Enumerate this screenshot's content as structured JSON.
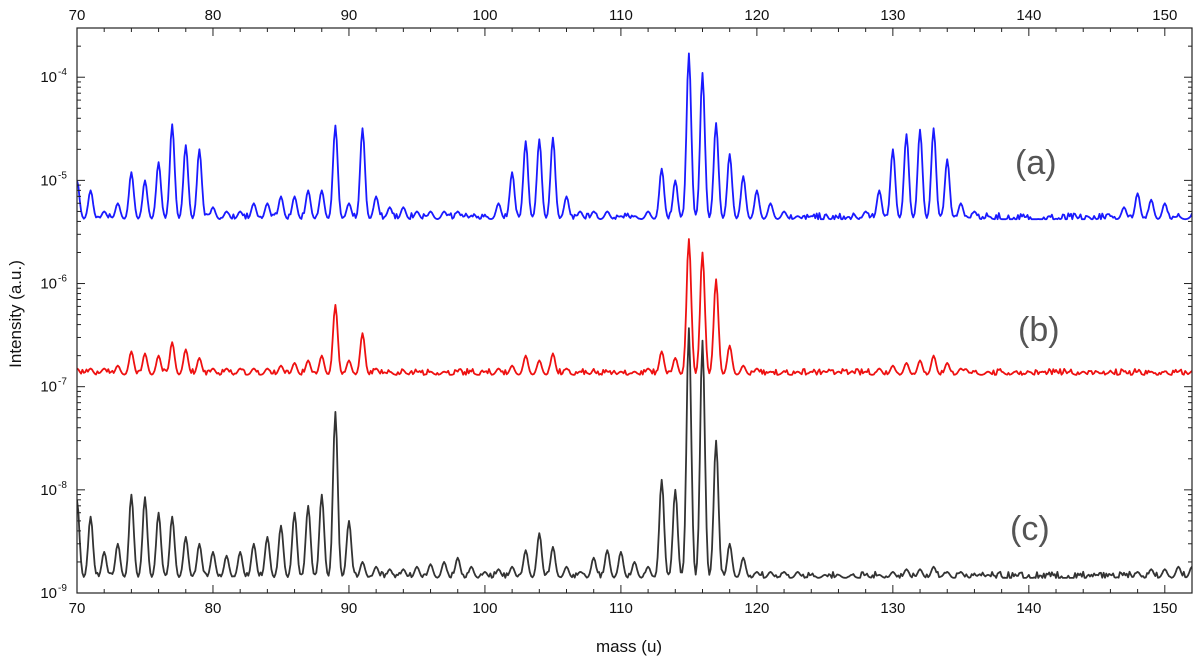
{
  "chart_data": {
    "type": "line",
    "xlabel": "mass (u)",
    "ylabel": "Intensity (a.u.)",
    "xlim": [
      70,
      152
    ],
    "ylim": [
      1e-09,
      0.0003
    ],
    "y_scale": "log",
    "x_ticks": [
      70,
      80,
      90,
      100,
      110,
      120,
      130,
      140,
      150
    ],
    "y_ticks": [
      {
        "value": 1e-09,
        "base": "10",
        "exp": "-9"
      },
      {
        "value": 1e-08,
        "base": "10",
        "exp": "-8"
      },
      {
        "value": 1e-07,
        "base": "10",
        "exp": "-7"
      },
      {
        "value": 1e-06,
        "base": "10",
        "exp": "-6"
      },
      {
        "value": 1e-05,
        "base": "10",
        "exp": "-5"
      },
      {
        "value": 0.0001,
        "base": "10",
        "exp": "-4"
      }
    ],
    "grid": false,
    "mirror_top_axis": true,
    "series": [
      {
        "label": "(a)",
        "color": "#1a1aff",
        "baseline": 4.2e-06,
        "peaks": [
          {
            "x": 70,
            "y": 1e-05
          },
          {
            "x": 71,
            "y": 8e-06
          },
          {
            "x": 72,
            "y": 5e-06
          },
          {
            "x": 73,
            "y": 6e-06
          },
          {
            "x": 74,
            "y": 1.2e-05
          },
          {
            "x": 75,
            "y": 1e-05
          },
          {
            "x": 76,
            "y": 1.5e-05
          },
          {
            "x": 77,
            "y": 3.5e-05
          },
          {
            "x": 78,
            "y": 2.2e-05
          },
          {
            "x": 79,
            "y": 2e-05
          },
          {
            "x": 80,
            "y": 5.5e-06
          },
          {
            "x": 81,
            "y": 5e-06
          },
          {
            "x": 82,
            "y": 5e-06
          },
          {
            "x": 83,
            "y": 6e-06
          },
          {
            "x": 84,
            "y": 6e-06
          },
          {
            "x": 85,
            "y": 7e-06
          },
          {
            "x": 86,
            "y": 7e-06
          },
          {
            "x": 87,
            "y": 8e-06
          },
          {
            "x": 88,
            "y": 8e-06
          },
          {
            "x": 89,
            "y": 3.4e-05
          },
          {
            "x": 90,
            "y": 6e-06
          },
          {
            "x": 91,
            "y": 3.2e-05
          },
          {
            "x": 92,
            "y": 7e-06
          },
          {
            "x": 93,
            "y": 5.5e-06
          },
          {
            "x": 94,
            "y": 5.5e-06
          },
          {
            "x": 95,
            "y": 5e-06
          },
          {
            "x": 96,
            "y": 5e-06
          },
          {
            "x": 97,
            "y": 5e-06
          },
          {
            "x": 98,
            "y": 5e-06
          },
          {
            "x": 99,
            "y": 4.5e-06
          },
          {
            "x": 100,
            "y": 4.5e-06
          },
          {
            "x": 101,
            "y": 6e-06
          },
          {
            "x": 102,
            "y": 1.2e-05
          },
          {
            "x": 103,
            "y": 2.4e-05
          },
          {
            "x": 104,
            "y": 2.5e-05
          },
          {
            "x": 105,
            "y": 2.6e-05
          },
          {
            "x": 106,
            "y": 7e-06
          },
          {
            "x": 107,
            "y": 5e-06
          },
          {
            "x": 108,
            "y": 5e-06
          },
          {
            "x": 109,
            "y": 5e-06
          },
          {
            "x": 110,
            "y": 4.5e-06
          },
          {
            "x": 111,
            "y": 4.5e-06
          },
          {
            "x": 112,
            "y": 5e-06
          },
          {
            "x": 113,
            "y": 1.3e-05
          },
          {
            "x": 114,
            "y": 1e-05
          },
          {
            "x": 115,
            "y": 0.00017
          },
          {
            "x": 116,
            "y": 0.00011
          },
          {
            "x": 117,
            "y": 3.6e-05
          },
          {
            "x": 118,
            "y": 1.8e-05
          },
          {
            "x": 119,
            "y": 1.1e-05
          },
          {
            "x": 120,
            "y": 8e-06
          },
          {
            "x": 121,
            "y": 6e-06
          },
          {
            "x": 122,
            "y": 5e-06
          },
          {
            "x": 123,
            "y": 4.5e-06
          },
          {
            "x": 124,
            "y": 4.5e-06
          },
          {
            "x": 125,
            "y": 4e-06
          },
          {
            "x": 126,
            "y": 4e-06
          },
          {
            "x": 127,
            "y": 4e-06
          },
          {
            "x": 128,
            "y": 5e-06
          },
          {
            "x": 129,
            "y": 8e-06
          },
          {
            "x": 130,
            "y": 2e-05
          },
          {
            "x": 131,
            "y": 2.8e-05
          },
          {
            "x": 132,
            "y": 3.1e-05
          },
          {
            "x": 133,
            "y": 3.2e-05
          },
          {
            "x": 134,
            "y": 1.6e-05
          },
          {
            "x": 135,
            "y": 6e-06
          },
          {
            "x": 136,
            "y": 5e-06
          },
          {
            "x": 137,
            "y": 4.5e-06
          },
          {
            "x": 138,
            "y": 4e-06
          },
          {
            "x": 139,
            "y": 4e-06
          },
          {
            "x": 140,
            "y": 3.8e-06
          },
          {
            "x": 141,
            "y": 3.8e-06
          },
          {
            "x": 142,
            "y": 3.8e-06
          },
          {
            "x": 143,
            "y": 3.8e-06
          },
          {
            "x": 144,
            "y": 3.6e-06
          },
          {
            "x": 145,
            "y": 4e-06
          },
          {
            "x": 146,
            "y": 4.5e-06
          },
          {
            "x": 147,
            "y": 5.5e-06
          },
          {
            "x": 148,
            "y": 7.5e-06
          },
          {
            "x": 149,
            "y": 6.5e-06
          },
          {
            "x": 150,
            "y": 6e-06
          },
          {
            "x": 151,
            "y": 4.5e-06
          },
          {
            "x": 152,
            "y": 4.5e-06
          }
        ]
      },
      {
        "label": "(b)",
        "color": "#ee1111",
        "baseline": 1.3e-07,
        "peaks": [
          {
            "x": 70,
            "y": 1.5e-07
          },
          {
            "x": 71,
            "y": 1.5e-07
          },
          {
            "x": 72,
            "y": 1.5e-07
          },
          {
            "x": 73,
            "y": 1.6e-07
          },
          {
            "x": 74,
            "y": 2.2e-07
          },
          {
            "x": 75,
            "y": 2.1e-07
          },
          {
            "x": 76,
            "y": 2e-07
          },
          {
            "x": 77,
            "y": 2.7e-07
          },
          {
            "x": 78,
            "y": 2.3e-07
          },
          {
            "x": 79,
            "y": 1.9e-07
          },
          {
            "x": 80,
            "y": 1.5e-07
          },
          {
            "x": 81,
            "y": 1.5e-07
          },
          {
            "x": 82,
            "y": 1.5e-07
          },
          {
            "x": 83,
            "y": 1.5e-07
          },
          {
            "x": 84,
            "y": 1.5e-07
          },
          {
            "x": 85,
            "y": 1.6e-07
          },
          {
            "x": 86,
            "y": 1.7e-07
          },
          {
            "x": 87,
            "y": 1.8e-07
          },
          {
            "x": 88,
            "y": 2e-07
          },
          {
            "x": 89,
            "y": 6.2e-07
          },
          {
            "x": 90,
            "y": 1.8e-07
          },
          {
            "x": 91,
            "y": 3.3e-07
          },
          {
            "x": 92,
            "y": 1.5e-07
          },
          {
            "x": 93,
            "y": 1.4e-07
          },
          {
            "x": 94,
            "y": 1.4e-07
          },
          {
            "x": 95,
            "y": 1.4e-07
          },
          {
            "x": 96,
            "y": 1.4e-07
          },
          {
            "x": 97,
            "y": 1.4e-07
          },
          {
            "x": 98,
            "y": 1.4e-07
          },
          {
            "x": 99,
            "y": 1.4e-07
          },
          {
            "x": 100,
            "y": 1.4e-07
          },
          {
            "x": 101,
            "y": 1.5e-07
          },
          {
            "x": 102,
            "y": 1.6e-07
          },
          {
            "x": 103,
            "y": 2e-07
          },
          {
            "x": 104,
            "y": 1.8e-07
          },
          {
            "x": 105,
            "y": 2.1e-07
          },
          {
            "x": 106,
            "y": 1.5e-07
          },
          {
            "x": 107,
            "y": 1.4e-07
          },
          {
            "x": 108,
            "y": 1.4e-07
          },
          {
            "x": 109,
            "y": 1.4e-07
          },
          {
            "x": 110,
            "y": 1.4e-07
          },
          {
            "x": 111,
            "y": 1.4e-07
          },
          {
            "x": 112,
            "y": 1.5e-07
          },
          {
            "x": 113,
            "y": 2.2e-07
          },
          {
            "x": 114,
            "y": 1.9e-07
          },
          {
            "x": 115,
            "y": 2.7e-06
          },
          {
            "x": 116,
            "y": 2e-06
          },
          {
            "x": 117,
            "y": 1.1e-06
          },
          {
            "x": 118,
            "y": 2.5e-07
          },
          {
            "x": 119,
            "y": 1.6e-07
          },
          {
            "x": 120,
            "y": 1.5e-07
          },
          {
            "x": 121,
            "y": 1.4e-07
          },
          {
            "x": 122,
            "y": 1.4e-07
          },
          {
            "x": 123,
            "y": 1.4e-07
          },
          {
            "x": 124,
            "y": 1.4e-07
          },
          {
            "x": 125,
            "y": 1.4e-07
          },
          {
            "x": 126,
            "y": 1.4e-07
          },
          {
            "x": 127,
            "y": 1.4e-07
          },
          {
            "x": 128,
            "y": 1.4e-07
          },
          {
            "x": 129,
            "y": 1.5e-07
          },
          {
            "x": 130,
            "y": 1.6e-07
          },
          {
            "x": 131,
            "y": 1.7e-07
          },
          {
            "x": 132,
            "y": 1.8e-07
          },
          {
            "x": 133,
            "y": 2e-07
          },
          {
            "x": 134,
            "y": 1.7e-07
          },
          {
            "x": 135,
            "y": 1.5e-07
          },
          {
            "x": 136,
            "y": 1.4e-07
          },
          {
            "x": 137,
            "y": 1.4e-07
          },
          {
            "x": 138,
            "y": 1.4e-07
          },
          {
            "x": 139,
            "y": 1.4e-07
          },
          {
            "x": 140,
            "y": 1.4e-07
          },
          {
            "x": 141,
            "y": 1.4e-07
          },
          {
            "x": 142,
            "y": 1.4e-07
          },
          {
            "x": 143,
            "y": 1.4e-07
          },
          {
            "x": 144,
            "y": 1.4e-07
          },
          {
            "x": 145,
            "y": 1.4e-07
          },
          {
            "x": 146,
            "y": 1.4e-07
          },
          {
            "x": 147,
            "y": 1.4e-07
          },
          {
            "x": 148,
            "y": 1.4e-07
          },
          {
            "x": 149,
            "y": 1.4e-07
          },
          {
            "x": 150,
            "y": 1.4e-07
          },
          {
            "x": 151,
            "y": 1.4e-07
          },
          {
            "x": 152,
            "y": 1.4e-07
          }
        ]
      },
      {
        "label": "(c)",
        "color": "#333333",
        "baseline": 1.4e-09,
        "peaks": [
          {
            "x": 70,
            "y": 8e-09
          },
          {
            "x": 71,
            "y": 5.5e-09
          },
          {
            "x": 72,
            "y": 2.5e-09
          },
          {
            "x": 73,
            "y": 3e-09
          },
          {
            "x": 74,
            "y": 9e-09
          },
          {
            "x": 75,
            "y": 8.5e-09
          },
          {
            "x": 76,
            "y": 6e-09
          },
          {
            "x": 77,
            "y": 5.5e-09
          },
          {
            "x": 78,
            "y": 3.5e-09
          },
          {
            "x": 79,
            "y": 3e-09
          },
          {
            "x": 80,
            "y": 2.5e-09
          },
          {
            "x": 81,
            "y": 2.3e-09
          },
          {
            "x": 82,
            "y": 2.5e-09
          },
          {
            "x": 83,
            "y": 3e-09
          },
          {
            "x": 84,
            "y": 3.5e-09
          },
          {
            "x": 85,
            "y": 4.5e-09
          },
          {
            "x": 86,
            "y": 6e-09
          },
          {
            "x": 87,
            "y": 7e-09
          },
          {
            "x": 88,
            "y": 9e-09
          },
          {
            "x": 89,
            "y": 5.7e-08
          },
          {
            "x": 90,
            "y": 5e-09
          },
          {
            "x": 91,
            "y": 2e-09
          },
          {
            "x": 92,
            "y": 1.8e-09
          },
          {
            "x": 93,
            "y": 1.7e-09
          },
          {
            "x": 94,
            "y": 1.7e-09
          },
          {
            "x": 95,
            "y": 1.8e-09
          },
          {
            "x": 96,
            "y": 1.9e-09
          },
          {
            "x": 97,
            "y": 2e-09
          },
          {
            "x": 98,
            "y": 2.2e-09
          },
          {
            "x": 99,
            "y": 1.8e-09
          },
          {
            "x": 100,
            "y": 1.6e-09
          },
          {
            "x": 101,
            "y": 1.7e-09
          },
          {
            "x": 102,
            "y": 1.8e-09
          },
          {
            "x": 103,
            "y": 2.6e-09
          },
          {
            "x": 104,
            "y": 3.8e-09
          },
          {
            "x": 105,
            "y": 2.8e-09
          },
          {
            "x": 106,
            "y": 1.8e-09
          },
          {
            "x": 107,
            "y": 1.6e-09
          },
          {
            "x": 108,
            "y": 2.2e-09
          },
          {
            "x": 109,
            "y": 2.6e-09
          },
          {
            "x": 110,
            "y": 2.5e-09
          },
          {
            "x": 111,
            "y": 2e-09
          },
          {
            "x": 112,
            "y": 1.8e-09
          },
          {
            "x": 113,
            "y": 1.25e-08
          },
          {
            "x": 114,
            "y": 1e-08
          },
          {
            "x": 115,
            "y": 3.7e-07
          },
          {
            "x": 116,
            "y": 2.8e-07
          },
          {
            "x": 117,
            "y": 3e-08
          },
          {
            "x": 118,
            "y": 3e-09
          },
          {
            "x": 119,
            "y": 2.2e-09
          },
          {
            "x": 120,
            "y": 1.6e-09
          },
          {
            "x": 121,
            "y": 1.6e-09
          },
          {
            "x": 122,
            "y": 1.6e-09
          },
          {
            "x": 123,
            "y": 1.6e-09
          },
          {
            "x": 124,
            "y": 1.5e-09
          },
          {
            "x": 125,
            "y": 1.5e-09
          },
          {
            "x": 126,
            "y": 1.5e-09
          },
          {
            "x": 127,
            "y": 1.5e-09
          },
          {
            "x": 128,
            "y": 1.5e-09
          },
          {
            "x": 129,
            "y": 1.5e-09
          },
          {
            "x": 130,
            "y": 1.6e-09
          },
          {
            "x": 131,
            "y": 1.7e-09
          },
          {
            "x": 132,
            "y": 1.7e-09
          },
          {
            "x": 133,
            "y": 1.8e-09
          },
          {
            "x": 134,
            "y": 1.6e-09
          },
          {
            "x": 135,
            "y": 1.6e-09
          },
          {
            "x": 136,
            "y": 1.5e-09
          },
          {
            "x": 137,
            "y": 1.5e-09
          },
          {
            "x": 138,
            "y": 1.4e-09
          },
          {
            "x": 139,
            "y": 1.4e-09
          },
          {
            "x": 140,
            "y": 1.4e-09
          },
          {
            "x": 141,
            "y": 1.4e-09
          },
          {
            "x": 142,
            "y": 1.4e-09
          },
          {
            "x": 143,
            "y": 1.4e-09
          },
          {
            "x": 144,
            "y": 1.4e-09
          },
          {
            "x": 145,
            "y": 1.5e-09
          },
          {
            "x": 146,
            "y": 1.5e-09
          },
          {
            "x": 147,
            "y": 1.5e-09
          },
          {
            "x": 148,
            "y": 1.6e-09
          },
          {
            "x": 149,
            "y": 1.7e-09
          },
          {
            "x": 150,
            "y": 1.7e-09
          },
          {
            "x": 151,
            "y": 1.8e-09
          },
          {
            "x": 152,
            "y": 1.8e-09
          }
        ]
      }
    ]
  }
}
